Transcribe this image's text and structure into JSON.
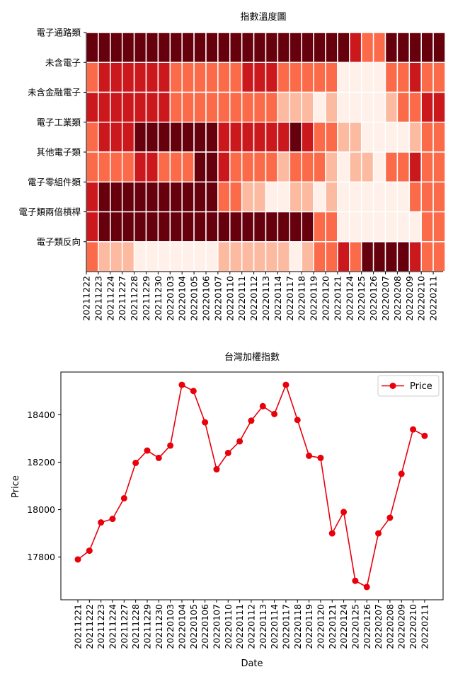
{
  "chart_data": [
    {
      "type": "heatmap",
      "title": "指數溫度圖",
      "rows": [
        "電子通路類",
        "未含電子",
        "未含金融電子",
        "電子工業類",
        "其他電子類",
        "電子零組件類",
        "電子類兩倍槓桿",
        "電子類反向"
      ],
      "x_tick_labels": [
        "20211222",
        "20211223",
        "20211224",
        "20211227",
        "20211228",
        "20211229",
        "20211230",
        "20220103",
        "20220104",
        "20220105",
        "20220106",
        "20220107",
        "20220110",
        "20220111",
        "20220112",
        "20220113",
        "20220114",
        "20220117",
        "20220118",
        "20220119",
        "20220120",
        "20220121",
        "20220124",
        "20220125",
        "20220126",
        "20220207",
        "20220208",
        "20220209",
        "20220210",
        "20220211"
      ],
      "color_scale": "Reds",
      "levels": [
        [
          5,
          5,
          5,
          5,
          5,
          5,
          5,
          5,
          5,
          5,
          5,
          5,
          5,
          5,
          5,
          5,
          5,
          5,
          5,
          5,
          5,
          5,
          4,
          3,
          3,
          5,
          5,
          5,
          5,
          5
        ],
        [
          3,
          4,
          4,
          4,
          4,
          4,
          4,
          3,
          3,
          3,
          3,
          3,
          3,
          4,
          4,
          4,
          3,
          3,
          3,
          3,
          3,
          1,
          1,
          1,
          1,
          3,
          3,
          4,
          3,
          3
        ],
        [
          4,
          4,
          4,
          4,
          4,
          4,
          4,
          3,
          3,
          3,
          3,
          3,
          3,
          3,
          3,
          3,
          2,
          2,
          2,
          1,
          2,
          1,
          1,
          1,
          1,
          2,
          3,
          3,
          4,
          4
        ],
        [
          3,
          4,
          4,
          4,
          5,
          5,
          5,
          5,
          5,
          5,
          5,
          4,
          4,
          4,
          4,
          4,
          4,
          5,
          4,
          3,
          3,
          2,
          2,
          1,
          1,
          1,
          1,
          2,
          3,
          3
        ],
        [
          3,
          3,
          3,
          3,
          4,
          4,
          3,
          3,
          3,
          5,
          5,
          4,
          3,
          3,
          3,
          3,
          2,
          3,
          3,
          3,
          2,
          1,
          2,
          2,
          1,
          3,
          3,
          4,
          3,
          3
        ],
        [
          4,
          5,
          5,
          5,
          5,
          5,
          5,
          5,
          5,
          5,
          5,
          3,
          3,
          2,
          2,
          1,
          1,
          2,
          2,
          1,
          2,
          1,
          1,
          1,
          1,
          1,
          1,
          3,
          3,
          3
        ],
        [
          4,
          5,
          5,
          5,
          5,
          5,
          5,
          5,
          5,
          5,
          5,
          5,
          5,
          5,
          5,
          5,
          5,
          5,
          5,
          3,
          3,
          1,
          1,
          1,
          1,
          1,
          1,
          1,
          3,
          3
        ],
        [
          3,
          2,
          2,
          2,
          1,
          1,
          1,
          1,
          1,
          1,
          1,
          2,
          2,
          2,
          2,
          2,
          2,
          1,
          2,
          3,
          3,
          4,
          3,
          5,
          5,
          5,
          5,
          4,
          3,
          3
        ]
      ]
    },
    {
      "type": "line",
      "title": "台灣加權指數",
      "xlabel": "Date",
      "ylabel": "Price",
      "legend": "top-right",
      "series": [
        {
          "name": "Price",
          "color": "#e8000b",
          "x": [
            "20211221",
            "20211222",
            "20211223",
            "20211224",
            "20211227",
            "20211228",
            "20211229",
            "20211230",
            "20220103",
            "20220104",
            "20220105",
            "20220106",
            "20220107",
            "20220110",
            "20220111",
            "20220112",
            "20220113",
            "20220114",
            "20220117",
            "20220118",
            "20220119",
            "20220120",
            "20220121",
            "20220124",
            "20220125",
            "20220126",
            "20220207",
            "20220208",
            "20220209",
            "20220210",
            "20220211"
          ],
          "values": [
            17790,
            17827,
            17946,
            17961,
            18048,
            18197,
            18249,
            18218,
            18270,
            18526,
            18500,
            18368,
            18170,
            18239,
            18288,
            18375,
            18436,
            18403,
            18526,
            18378,
            18227,
            18218,
            17900,
            17990,
            17700,
            17674,
            17900,
            17966,
            18151,
            18338,
            18311
          ]
        }
      ],
      "y_ticks": [
        17800,
        18000,
        18200,
        18400
      ],
      "ylim": [
        17620,
        18580
      ]
    }
  ]
}
